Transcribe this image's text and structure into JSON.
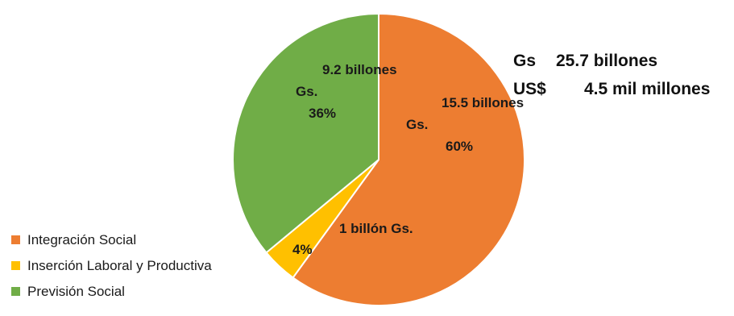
{
  "chart_data": {
    "type": "pie",
    "title": "",
    "slices": [
      {
        "name": "Integración Social",
        "value": 60,
        "label_lines": [
          "15.5 billones",
          "Gs.",
          "60%"
        ],
        "color": "#ed7d31"
      },
      {
        "name": "Inserción Laboral y Productiva",
        "value": 4,
        "label_lines": [
          "1 billón Gs.",
          "4%"
        ],
        "color": "#ffc000"
      },
      {
        "name": "Previsión Social",
        "value": 36,
        "label_lines": [
          "9.2 billones",
          "Gs.",
          "36%"
        ],
        "color": "#70ad47"
      }
    ],
    "legend_position": "bottom-left"
  },
  "totals": {
    "gs_currency": "Gs",
    "gs_amount": "25.7 billones",
    "usd_currency": "US$",
    "usd_amount": "4.5 mil millones"
  }
}
